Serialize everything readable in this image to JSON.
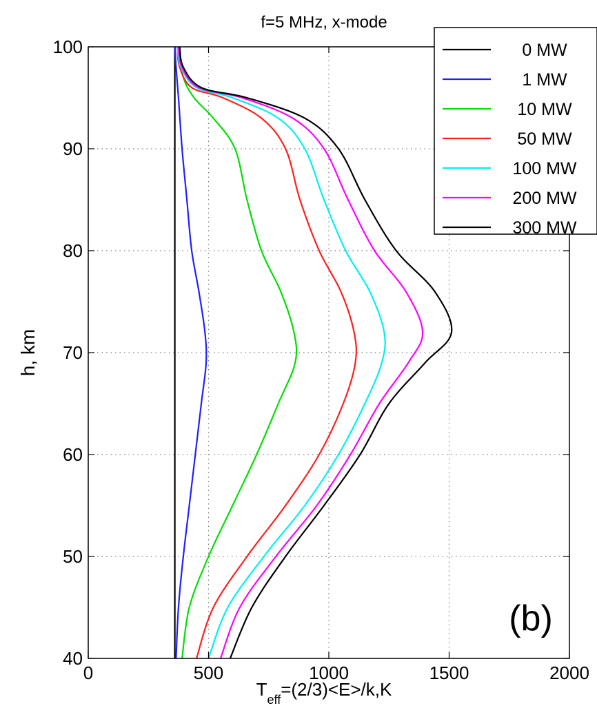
{
  "chart_data": {
    "type": "line",
    "title": "f=5 MHz, x-mode",
    "xlabel_main": "T",
    "xlabel_sub": "eff",
    "xlabel_rest": "=(2/3)<E>/k,K",
    "ylabel": "h, km",
    "xlim": [
      0,
      2000
    ],
    "ylim": [
      40,
      100
    ],
    "xticks": [
      0,
      500,
      1000,
      1500,
      2000
    ],
    "yticks": [
      40,
      50,
      60,
      70,
      80,
      90,
      100
    ],
    "grid": true,
    "legend_position": "top-right",
    "annotation": "(b)",
    "series": [
      {
        "name": "0 MW",
        "color": "#000000",
        "points": [
          [
            360,
            40
          ],
          [
            360,
            100
          ]
        ]
      },
      {
        "name": "1 MW",
        "color": "#1f1fff",
        "points": [
          [
            365,
            40
          ],
          [
            375,
            45
          ],
          [
            395,
            50
          ],
          [
            420,
            55
          ],
          [
            445,
            60
          ],
          [
            470,
            65
          ],
          [
            490,
            69
          ],
          [
            485,
            72
          ],
          [
            460,
            76
          ],
          [
            430,
            80
          ],
          [
            410,
            85
          ],
          [
            390,
            90
          ],
          [
            375,
            95
          ],
          [
            365,
            98
          ],
          [
            360,
            100
          ]
        ]
      },
      {
        "name": "10 MW",
        "color": "#00e000",
        "points": [
          [
            390,
            40
          ],
          [
            420,
            45
          ],
          [
            500,
            50
          ],
          [
            600,
            55
          ],
          [
            700,
            60
          ],
          [
            790,
            65
          ],
          [
            860,
            69
          ],
          [
            855,
            72
          ],
          [
            800,
            76
          ],
          [
            720,
            80
          ],
          [
            660,
            85
          ],
          [
            610,
            90
          ],
          [
            520,
            93
          ],
          [
            440,
            95
          ],
          [
            395,
            97
          ],
          [
            370,
            100
          ]
        ]
      },
      {
        "name": "50 MW",
        "color": "#ff1f1f",
        "points": [
          [
            450,
            40
          ],
          [
            520,
            45
          ],
          [
            660,
            50
          ],
          [
            820,
            55
          ],
          [
            960,
            60
          ],
          [
            1060,
            65
          ],
          [
            1110,
            69
          ],
          [
            1105,
            72
          ],
          [
            1050,
            76
          ],
          [
            960,
            80
          ],
          [
            880,
            85
          ],
          [
            820,
            90
          ],
          [
            720,
            93
          ],
          [
            560,
            95
          ],
          [
            430,
            96
          ],
          [
            380,
            98
          ],
          [
            370,
            100
          ]
        ]
      },
      {
        "name": "100 MW",
        "color": "#00f0f0",
        "points": [
          [
            500,
            40
          ],
          [
            580,
            45
          ],
          [
            730,
            50
          ],
          [
            900,
            55
          ],
          [
            1040,
            60
          ],
          [
            1150,
            65
          ],
          [
            1220,
            69
          ],
          [
            1230,
            72
          ],
          [
            1170,
            76
          ],
          [
            1070,
            80
          ],
          [
            980,
            85
          ],
          [
            900,
            90
          ],
          [
            790,
            93
          ],
          [
            600,
            95
          ],
          [
            450,
            96
          ],
          [
            385,
            98
          ],
          [
            370,
            100
          ]
        ]
      },
      {
        "name": "200 MW",
        "color": "#ff00ff",
        "points": [
          [
            550,
            40
          ],
          [
            630,
            45
          ],
          [
            780,
            50
          ],
          [
            950,
            55
          ],
          [
            1090,
            60
          ],
          [
            1210,
            65
          ],
          [
            1330,
            69
          ],
          [
            1390,
            72
          ],
          [
            1320,
            76
          ],
          [
            1190,
            80
          ],
          [
            1080,
            85
          ],
          [
            980,
            90
          ],
          [
            850,
            93
          ],
          [
            640,
            95
          ],
          [
            460,
            96
          ],
          [
            390,
            98
          ],
          [
            375,
            100
          ]
        ]
      },
      {
        "name": "300 MW",
        "color": "#000000",
        "points": [
          [
            590,
            40
          ],
          [
            680,
            45
          ],
          [
            820,
            50
          ],
          [
            980,
            55
          ],
          [
            1130,
            60
          ],
          [
            1250,
            65
          ],
          [
            1400,
            69
          ],
          [
            1510,
            72
          ],
          [
            1440,
            76
          ],
          [
            1280,
            80
          ],
          [
            1150,
            85
          ],
          [
            1040,
            90
          ],
          [
            900,
            93
          ],
          [
            660,
            95
          ],
          [
            470,
            96
          ],
          [
            395,
            98
          ],
          [
            380,
            100
          ]
        ]
      }
    ]
  }
}
